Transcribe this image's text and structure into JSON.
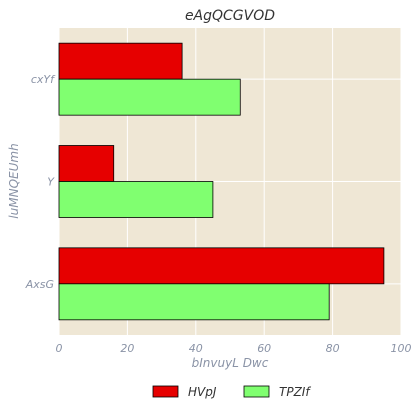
{
  "chart_data": {
    "type": "bar",
    "orientation": "horizontal",
    "title": "eAgQCGVOD",
    "xlabel": "bInvuyL Dwc",
    "ylabel": "luMNQEUmh",
    "categories": [
      "AxsG",
      "Y",
      "cxYf"
    ],
    "series": [
      {
        "name": "HVpJ",
        "values": [
          95,
          16,
          36
        ],
        "color": "#e60000"
      },
      {
        "name": "TPZIf",
        "values": [
          79,
          45,
          53
        ],
        "color": "#80ff70"
      }
    ],
    "xlim": [
      0,
      100
    ],
    "xticks": [
      0,
      20,
      40,
      60,
      80,
      100
    ],
    "grid": true,
    "legend_position": "bottom-center",
    "background_color": "#efe7d5"
  }
}
